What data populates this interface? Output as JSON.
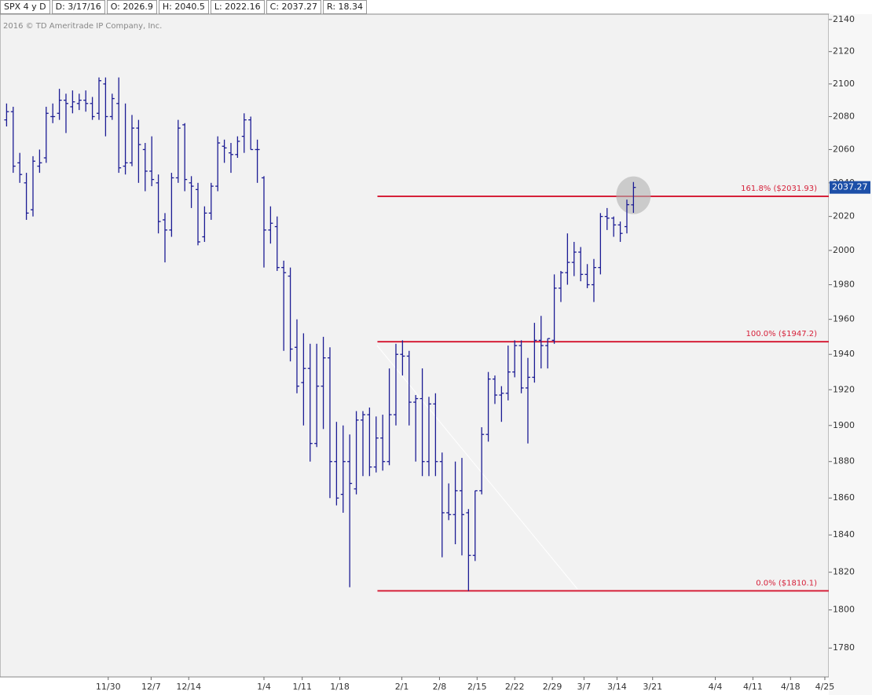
{
  "chart_data": {
    "type": "ohlc",
    "title": "SPX 4 y D",
    "info": [
      "D: 3/17/16",
      "O: 2026.9",
      "H: 2040.5",
      "L: 2022.16",
      "C: 2037.27",
      "R: 18.34"
    ],
    "copyright": "2016 © TD Ameritrade IP Company, Inc.",
    "log_scale": true,
    "ylim": [
      1765,
      2143.4
    ],
    "yticks": [
      1780,
      1800,
      1820,
      1840,
      1860,
      1880,
      1900,
      1920,
      1940,
      1960,
      1980,
      2000,
      2020,
      2040,
      2060,
      2080,
      2100,
      2120,
      2140
    ],
    "xlim": [
      -1,
      124.6
    ],
    "xticks": [
      {
        "value": 15.4,
        "label": "11/30"
      },
      {
        "value": 21.9,
        "label": "12/7"
      },
      {
        "value": 27.6,
        "label": "12/14"
      },
      {
        "value": 39.0,
        "label": "1/4"
      },
      {
        "value": 44.8,
        "label": "1/11"
      },
      {
        "value": 50.5,
        "label": "1/18"
      },
      {
        "value": 59.9,
        "label": "2/1"
      },
      {
        "value": 65.6,
        "label": "2/8"
      },
      {
        "value": 71.3,
        "label": "2/15"
      },
      {
        "value": 77.0,
        "label": "2/22"
      },
      {
        "value": 82.7,
        "label": "2/29"
      },
      {
        "value": 87.5,
        "label": "3/7"
      },
      {
        "value": 92.5,
        "label": "3/14"
      },
      {
        "value": 97.9,
        "label": "3/21"
      },
      {
        "value": 107.4,
        "label": "4/4"
      },
      {
        "value": 113.1,
        "label": "4/11"
      },
      {
        "value": 118.8,
        "label": "4/18"
      },
      {
        "value": 124.0,
        "label": "4/25"
      }
    ],
    "ohlc": {
      "color": "#1c1c94",
      "x": [
        0,
        1,
        2,
        3,
        4,
        5,
        6,
        7,
        8,
        9,
        10,
        11,
        12,
        13,
        14,
        15,
        16,
        17,
        18,
        19,
        20,
        21,
        22,
        23,
        24,
        25,
        26,
        27,
        28,
        29,
        30,
        31,
        32,
        33,
        34,
        35,
        36,
        37,
        38,
        39,
        40,
        41,
        42,
        43,
        44,
        45,
        46,
        47,
        48,
        49,
        50,
        51,
        52,
        53,
        54,
        55,
        56,
        57,
        58,
        59,
        60,
        61,
        62,
        63,
        64,
        65,
        66,
        67,
        68,
        69,
        70,
        71,
        72,
        73,
        74,
        75,
        76,
        77,
        78,
        79,
        80,
        81,
        82,
        83,
        84,
        85,
        86,
        87,
        88,
        89,
        90,
        91,
        92,
        93,
        94,
        95
      ],
      "open": [
        2078,
        2083,
        2052,
        2040,
        2024,
        2050,
        2055,
        2080,
        2082,
        2090,
        2086,
        2088,
        2090,
        2088,
        2082,
        2100,
        2080,
        2088,
        2050,
        2052,
        2073,
        2060,
        2047,
        2040,
        2018,
        2012,
        2043,
        2075,
        2040,
        2036,
        2008,
        2022,
        2038,
        2062,
        2058,
        2057,
        2068,
        2078,
        2060,
        2043,
        2012,
        2014,
        1990,
        1985,
        1944,
        1924,
        1932,
        1890,
        1922,
        1938,
        1880,
        1862,
        1880,
        1865,
        1903,
        1906,
        1877,
        1893,
        1880,
        1906,
        1940,
        1939,
        1913,
        1915,
        1880,
        1912,
        1880,
        1852,
        1851,
        1864,
        1852,
        1829,
        1864,
        1895,
        1926,
        1917,
        1918,
        1930,
        1945,
        1921,
        1927,
        1948,
        1945,
        1948,
        1978,
        1987,
        1993,
        1999,
        1986,
        1980,
        1990,
        2020,
        2019,
        2015,
        2014,
        2026.9
      ],
      "high": [
        2088,
        2086,
        2058,
        2046,
        2056,
        2060,
        2086,
        2088,
        2097,
        2094,
        2096,
        2094,
        2096,
        2092,
        2104,
        2104,
        2094,
        2104,
        2088,
        2081,
        2078,
        2064,
        2068,
        2045,
        2022,
        2046,
        2078,
        2076,
        2044,
        2040,
        2026,
        2040,
        2068,
        2066,
        2064,
        2068,
        2082,
        2080,
        2066,
        2044,
        2026,
        2020,
        1994,
        1990,
        1960,
        1952,
        1946,
        1946,
        1950,
        1944,
        1902,
        1900,
        1895,
        1908,
        1908,
        1910,
        1905,
        1906,
        1932,
        1946,
        1948,
        1942,
        1917,
        1932,
        1916,
        1918,
        1885,
        1868,
        1880,
        1882,
        1854,
        1864,
        1899,
        1930,
        1928,
        1922,
        1945,
        1948,
        1948,
        1938,
        1958,
        1962,
        1949,
        1986,
        1988,
        2010,
        2005,
        2002,
        1992,
        1995,
        2022,
        2025,
        2020,
        2017,
        2030,
        2040.5
      ],
      "low": [
        2074,
        2046,
        2040,
        2018,
        2020,
        2046,
        2052,
        2076,
        2078,
        2070,
        2082,
        2084,
        2083,
        2078,
        2078,
        2068,
        2078,
        2046,
        2045,
        2050,
        2040,
        2035,
        2038,
        2010,
        1993,
        2008,
        2040,
        2035,
        2025,
        2003,
        2005,
        2018,
        2035,
        2052,
        2046,
        2055,
        2058,
        2060,
        2040,
        1990,
        2004,
        1988,
        1942,
        1936,
        1918,
        1900,
        1880,
        1888,
        1898,
        1860,
        1856,
        1852,
        1812,
        1862,
        1872,
        1872,
        1874,
        1875,
        1878,
        1900,
        1928,
        1900,
        1880,
        1872,
        1872,
        1872,
        1828,
        1848,
        1835,
        1829,
        1810,
        1826,
        1862,
        1891,
        1912,
        1902,
        1914,
        1927,
        1918,
        1890,
        1924,
        1932,
        1932,
        1946,
        1970,
        1980,
        1985,
        1982,
        1978,
        1970,
        1986,
        2012,
        2008,
        2005,
        2010,
        2022.16
      ],
      "close": [
        2083,
        2050,
        2045,
        2022,
        2053,
        2052,
        2082,
        2080,
        2090,
        2088,
        2089,
        2090,
        2088,
        2080,
        2102,
        2080,
        2091,
        2049,
        2052,
        2073,
        2063,
        2047,
        2042,
        2017,
        2012,
        2043,
        2073,
        2042,
        2038,
        2005,
        2022,
        2038,
        2064,
        2061,
        2057,
        2065,
        2078,
        2060,
        2060,
        2012,
        2016,
        1990,
        1987,
        1943,
        1922,
        1932,
        1890,
        1922,
        1938,
        1880,
        1860,
        1880,
        1868,
        1903,
        1906,
        1877,
        1893,
        1880,
        1906,
        1940,
        1939,
        1913,
        1915,
        1880,
        1912,
        1880,
        1852,
        1851,
        1864,
        1851,
        1829,
        1864,
        1895,
        1926,
        1917,
        1918,
        1930,
        1945,
        1921,
        1927,
        1948,
        1945,
        1949,
        1978,
        1987,
        1993,
        1999,
        1986,
        1980,
        1990,
        2020,
        2019,
        2015,
        2010,
        2027,
        2037.27
      ]
    },
    "fib_start": 56.2,
    "fib_color": "#d6213a",
    "fib_levels": [
      {
        "label": "161.8%  ($2031.93)",
        "value": 2031.93
      },
      {
        "label": "100.0%  ($1947.2)",
        "value": 1947.2
      },
      {
        "label": "0.0%  ($1810.1)",
        "value": 1810.1
      }
    ]
  }
}
